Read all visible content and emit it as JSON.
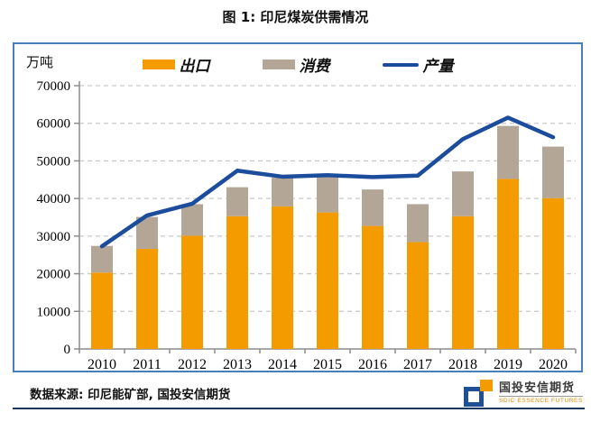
{
  "page": {
    "title": "图 1:  印尼煤炭供需情况",
    "source_note": "数据来源: 印尼能矿部, 国投安信期货"
  },
  "logo": {
    "cn": "国投安信期货",
    "en": "SDIC ESSENCE FUTURES"
  },
  "colors": {
    "box_border": "#4A7EBB",
    "grid": "#C9C9C9",
    "axis": "#8C8C8C",
    "bottom_rule": "#17375E",
    "logo_blue": "#1F5096",
    "logo_orange": "#F49B00"
  },
  "chart_data": {
    "type": "bar",
    "subtype": "stacked bars with overlaid line",
    "title": "图 1: 印尼煤炭供需情况",
    "unit_label": "万吨",
    "xlabel": "",
    "ylabel": "万吨",
    "categories": [
      "2010",
      "2011",
      "2012",
      "2013",
      "2014",
      "2015",
      "2016",
      "2017",
      "2018",
      "2019",
      "2020"
    ],
    "series": [
      {
        "name": "出口",
        "type": "bar",
        "color": "#F49B00",
        "values": [
          20300,
          26600,
          30100,
          35300,
          37900,
          36300,
          32700,
          28400,
          35300,
          45200,
          40100
        ]
      },
      {
        "name": "消费",
        "type": "bar",
        "color": "#B3A696",
        "values": [
          7100,
          8500,
          8400,
          7700,
          7600,
          9500,
          9700,
          10100,
          11900,
          14100,
          13700
        ]
      },
      {
        "name": "产量",
        "type": "line",
        "color": "#1B4D9C",
        "values": [
          27300,
          35500,
          38600,
          47400,
          45800,
          46200,
          45700,
          46100,
          55800,
          61500,
          56300
        ]
      }
    ],
    "stacked_totals": [
      27400,
      35100,
      38500,
      43000,
      45500,
      45800,
      42400,
      38500,
      47200,
      59300,
      53800
    ],
    "ylim": [
      0,
      70000
    ],
    "ytick_interval": 10000,
    "grid": "horizontal dashed",
    "legend_position": "top"
  }
}
